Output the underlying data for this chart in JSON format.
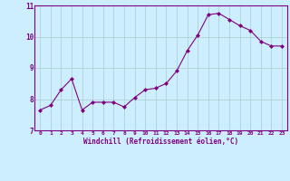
{
  "x": [
    0,
    1,
    2,
    3,
    4,
    5,
    6,
    7,
    8,
    9,
    10,
    11,
    12,
    13,
    14,
    15,
    16,
    17,
    18,
    19,
    20,
    21,
    22,
    23
  ],
  "y": [
    7.65,
    7.8,
    8.3,
    8.65,
    7.65,
    7.9,
    7.9,
    7.9,
    7.75,
    8.05,
    8.3,
    8.35,
    8.5,
    8.9,
    9.55,
    10.05,
    10.7,
    10.75,
    10.55,
    10.35,
    10.2,
    9.85,
    9.7,
    9.7
  ],
  "line_color": "#800080",
  "marker": "D",
  "marker_size": 2.0,
  "bg_color": "#cceeff",
  "grid_color": "#aacccc",
  "xlabel": "Windchill (Refroidissement éolien,°C)",
  "xlabel_color": "#800080",
  "tick_color": "#800080",
  "ylim": [
    7.0,
    11.0
  ],
  "yticks": [
    7,
    8,
    9,
    10,
    11
  ],
  "xtick_labels": [
    "0",
    "1",
    "2",
    "3",
    "4",
    "5",
    "6",
    "7",
    "8",
    "9",
    "10",
    "11",
    "12",
    "13",
    "14",
    "15",
    "16",
    "17",
    "18",
    "19",
    "20",
    "21",
    "22",
    "23"
  ],
  "spine_color": "#800080",
  "title_color": "#800080"
}
